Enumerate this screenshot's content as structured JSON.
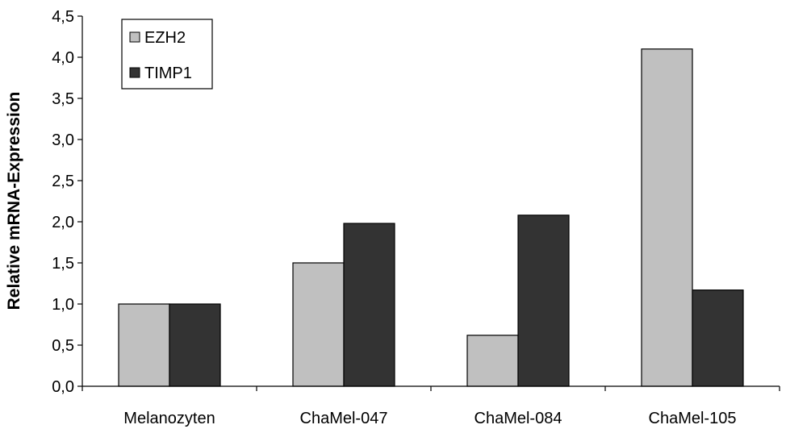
{
  "chart_data": {
    "type": "bar",
    "categories": [
      "Melanozyten",
      "ChaMel-047",
      "ChaMel-084",
      "ChaMel-105"
    ],
    "series": [
      {
        "name": "EZH2",
        "values": [
          1.0,
          1.5,
          0.62,
          4.1
        ],
        "color": "#c0c0c0"
      },
      {
        "name": "TIMP1",
        "values": [
          1.0,
          1.98,
          2.08,
          1.17
        ],
        "color": "#333333"
      }
    ],
    "title": "",
    "xlabel": "",
    "ylabel": "Relative mRNA-Expression",
    "ylim": [
      0,
      4.5
    ],
    "yticks": [
      "0,0",
      "0,5",
      "1,0",
      "1,5",
      "2,0",
      "2,5",
      "3,0",
      "3,5",
      "4,0",
      "4,5"
    ],
    "grid": false,
    "legend_position": "top-left"
  }
}
